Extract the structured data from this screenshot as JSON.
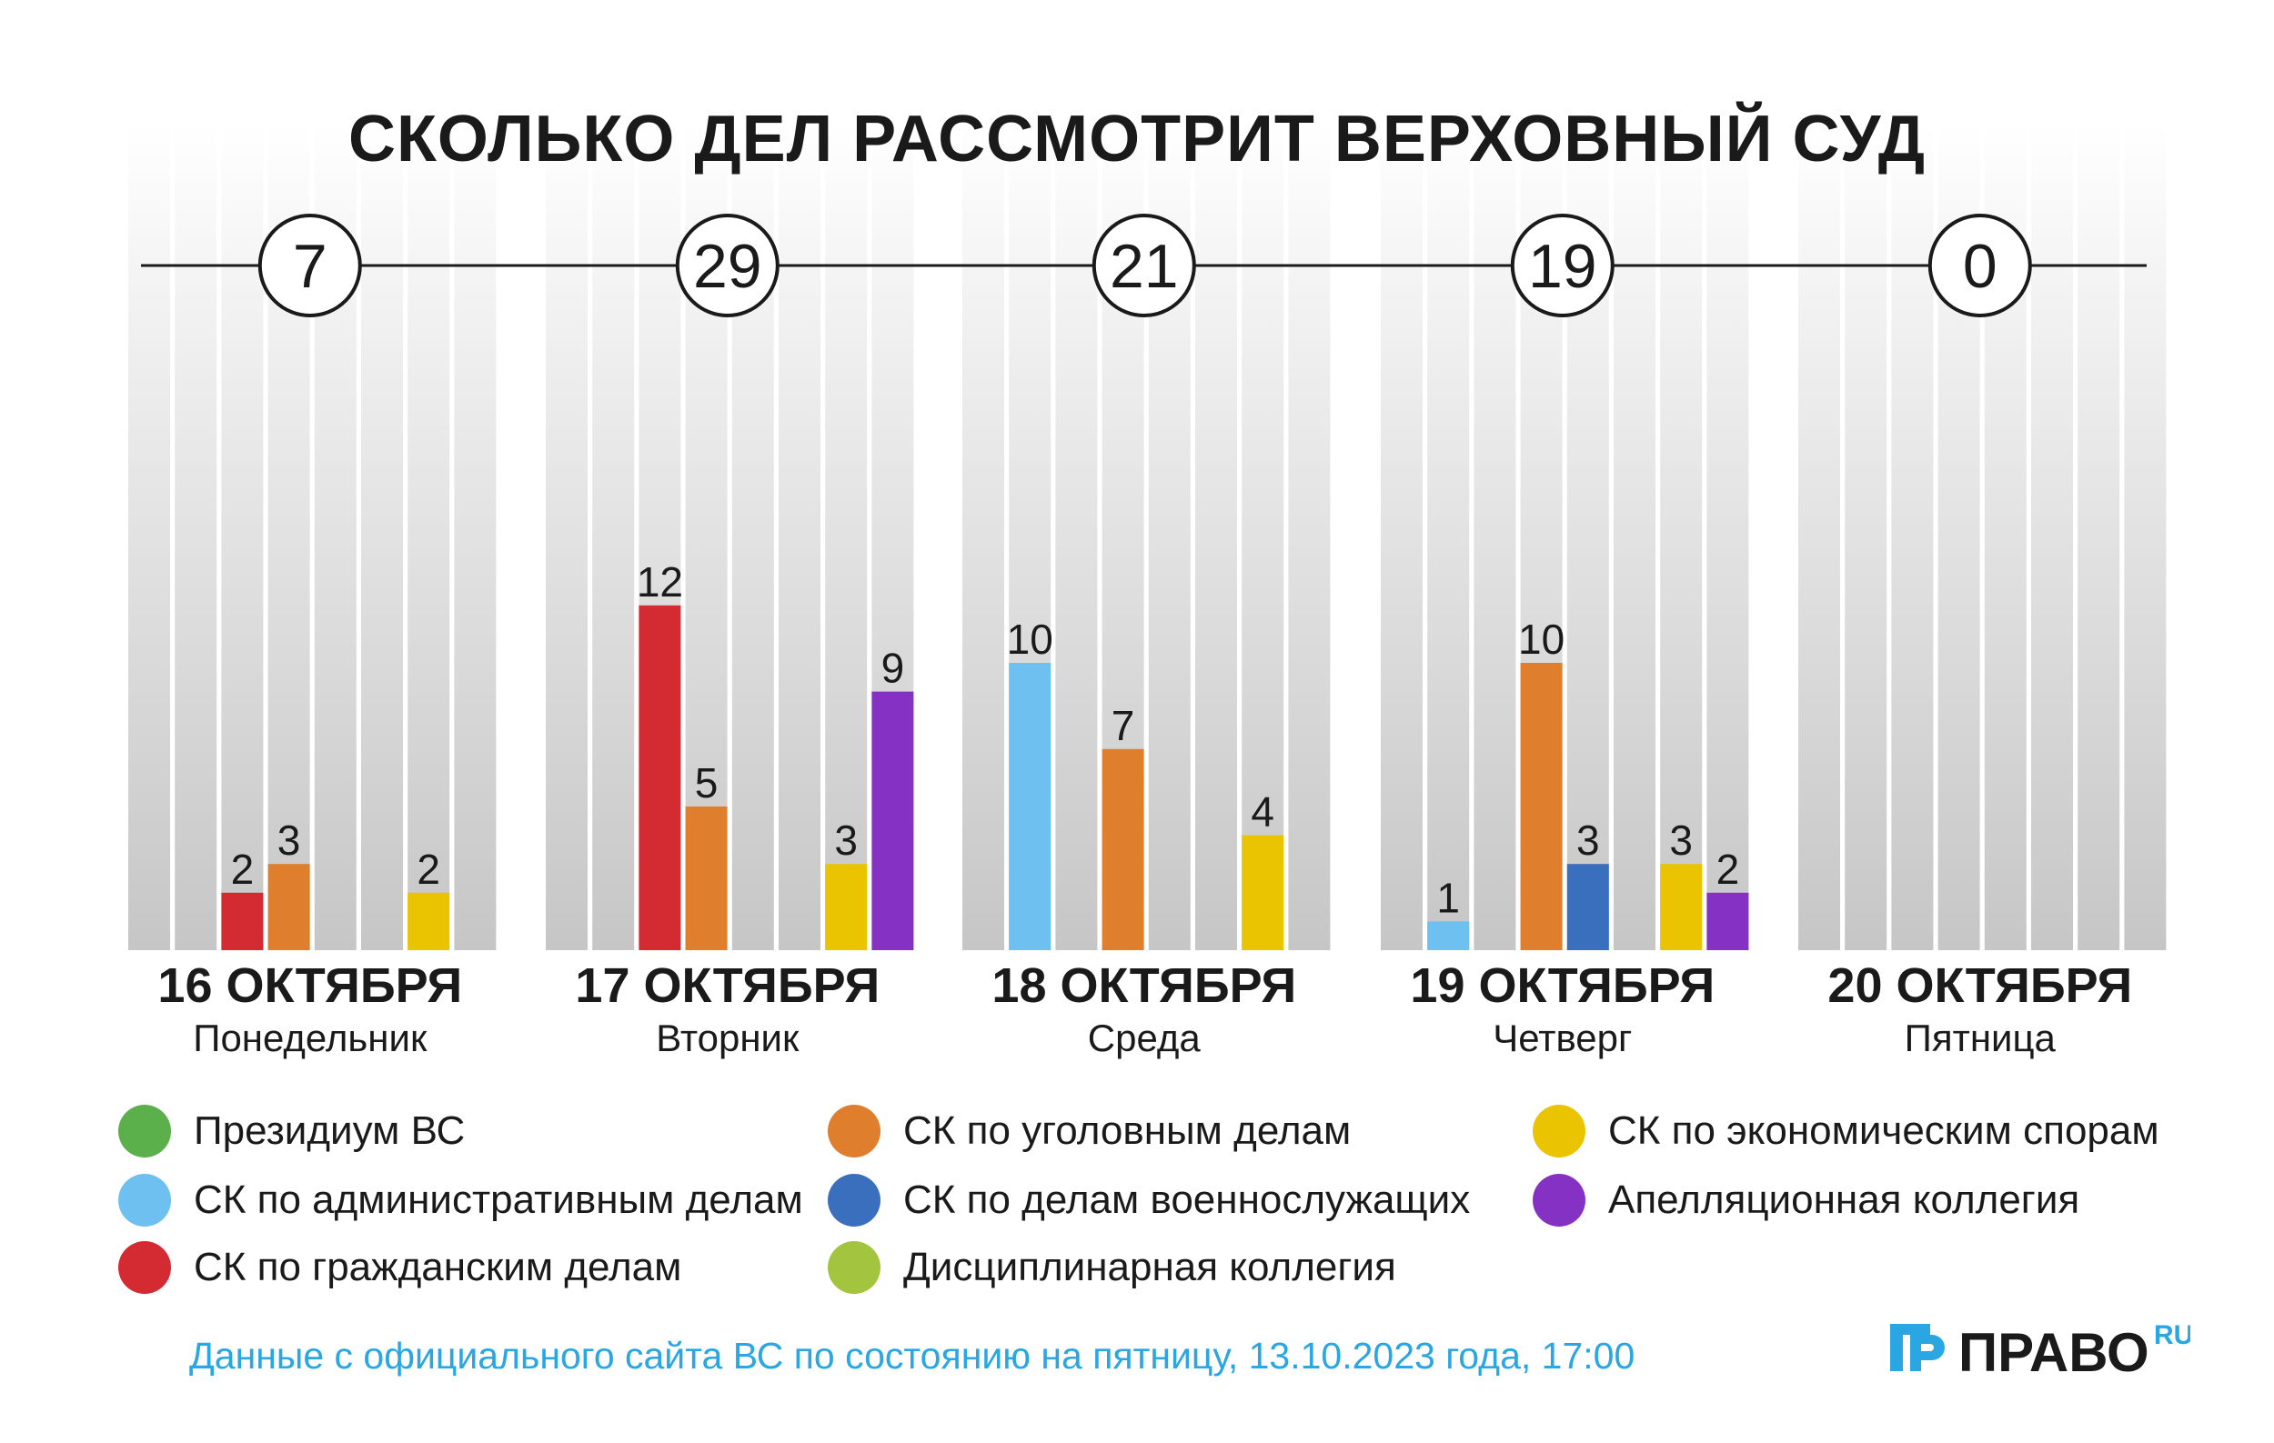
{
  "chart_data": {
    "type": "bar",
    "title": "СКОЛЬКО ДЕЛ РАССМОТРИТ ВЕРХОВНЫЙ СУД",
    "ylim": [
      0,
      13
    ],
    "groups": [
      {
        "date": "16 ОКТЯБРЯ",
        "weekday": "Понедельник",
        "total": "7",
        "values": [
          0,
          0,
          2,
          3,
          0,
          0,
          2,
          0
        ]
      },
      {
        "date": "17 ОКТЯБРЯ",
        "weekday": "Вторник",
        "total": "29",
        "values": [
          0,
          0,
          12,
          5,
          0,
          0,
          3,
          9
        ]
      },
      {
        "date": "18 ОКТЯБРЯ",
        "weekday": "Среда",
        "total": "21",
        "values": [
          0,
          10,
          0,
          7,
          0,
          0,
          4,
          0
        ]
      },
      {
        "date": "19 ОКТЯБРЯ",
        "weekday": "Четверг",
        "total": "19",
        "values": [
          0,
          1,
          0,
          10,
          3,
          0,
          3,
          2
        ]
      },
      {
        "date": "20 ОКТЯБРЯ",
        "weekday": "Пятница",
        "total": "0",
        "values": [
          0,
          0,
          0,
          0,
          0,
          0,
          0,
          0
        ]
      }
    ],
    "series": [
      {
        "name": "Президиум ВС",
        "color": "#5bb04b"
      },
      {
        "name": "СК по административным делам",
        "color": "#6dc0ef"
      },
      {
        "name": "СК по гражданским делам",
        "color": "#d42a32"
      },
      {
        "name": "СК по уголовным делам",
        "color": "#df7e2d"
      },
      {
        "name": "СК по делам военнослужащих",
        "color": "#3a6fbd"
      },
      {
        "name": "Дисциплинарная коллегия",
        "color": "#a2c43f"
      },
      {
        "name": "СК по экономическим спорам",
        "color": "#eac400"
      },
      {
        "name": "Апелляционная коллегия",
        "color": "#8532c4"
      }
    ]
  },
  "source_note": "Данные с официального сайта ВС по состоянию на пятницу, 13.10.2023 года, 17:00",
  "logo": {
    "main": "ПРАВО",
    "suffix": "RU"
  }
}
